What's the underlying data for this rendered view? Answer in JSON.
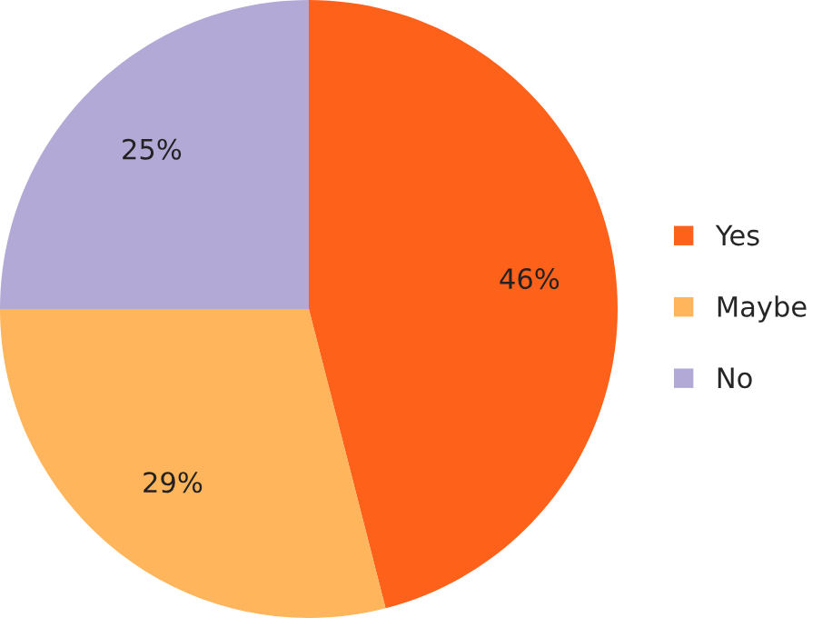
{
  "chart_data": {
    "type": "pie",
    "categories": [
      "Yes",
      "Maybe",
      "No"
    ],
    "values": [
      46,
      29,
      25
    ],
    "value_labels": [
      "46%",
      "29%",
      "25%"
    ],
    "colors": [
      "#fe6119",
      "#feb55c",
      "#b3a9d6"
    ],
    "legend": "right"
  }
}
